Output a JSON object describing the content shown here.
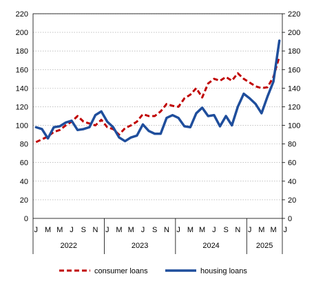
{
  "chart_data": {
    "type": "line",
    "title": "",
    "xlabel": "",
    "ylabel": "",
    "ylim": [
      0,
      220
    ],
    "yticks": [
      0,
      20,
      40,
      60,
      80,
      100,
      120,
      140,
      160,
      180,
      200,
      220
    ],
    "grid": true,
    "legend": "bottom",
    "month_labels": [
      "J",
      "M",
      "M",
      "J",
      "S",
      "N",
      "J",
      "M",
      "M",
      "J",
      "S",
      "N",
      "J",
      "M",
      "M",
      "J",
      "S",
      "N",
      "J",
      "M",
      "M",
      "J"
    ],
    "years": [
      {
        "label": "2022",
        "months": 12
      },
      {
        "label": "2023",
        "months": 12
      },
      {
        "label": "2024",
        "months": 12
      },
      {
        "label": "2025",
        "months": 6
      }
    ],
    "x": [
      "2022-01",
      "2022-02",
      "2022-03",
      "2022-04",
      "2022-05",
      "2022-06",
      "2022-07",
      "2022-08",
      "2022-09",
      "2022-10",
      "2022-11",
      "2022-12",
      "2023-01",
      "2023-02",
      "2023-03",
      "2023-04",
      "2023-05",
      "2023-06",
      "2023-07",
      "2023-08",
      "2023-09",
      "2023-10",
      "2023-11",
      "2023-12",
      "2024-01",
      "2024-02",
      "2024-03",
      "2024-04",
      "2024-05",
      "2024-06",
      "2024-07",
      "2024-08",
      "2024-09",
      "2024-10",
      "2024-11",
      "2024-12",
      "2025-01",
      "2025-02",
      "2025-03",
      "2025-04",
      "2025-05",
      "2025-06"
    ],
    "series": [
      {
        "name": "consumer loans",
        "color": "#c00000",
        "style": "dashed",
        "values": [
          82,
          85,
          88,
          93,
          95,
          100,
          104,
          110,
          104,
          102,
          100,
          106,
          98,
          96,
          90,
          97,
          100,
          104,
          112,
          110,
          110,
          115,
          123,
          121,
          120,
          129,
          133,
          140,
          130,
          145,
          150,
          148,
          152,
          148,
          156,
          150,
          146,
          142,
          140,
          141,
          152,
          174
        ]
      },
      {
        "name": "housing loans",
        "color": "#1f4e9c",
        "style": "solid",
        "values": [
          98,
          96,
          86,
          98,
          99,
          103,
          105,
          95,
          96,
          98,
          111,
          115,
          104,
          98,
          87,
          83,
          87,
          89,
          101,
          94,
          91,
          91,
          108,
          111,
          108,
          99,
          98,
          113,
          119,
          110,
          111,
          99,
          110,
          100,
          120,
          134,
          129,
          123,
          113,
          131,
          147,
          191
        ]
      }
    ]
  }
}
